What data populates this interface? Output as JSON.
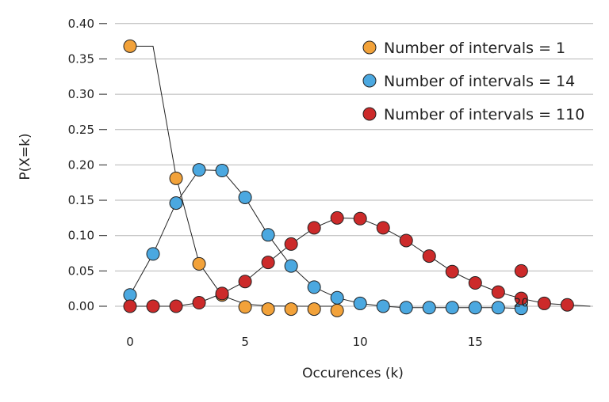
{
  "chart_data": {
    "type": "line",
    "xlabel": "Occurences (k)",
    "ylabel": "P(X=k)",
    "xlim": [
      -0.5,
      19.5
    ],
    "ylim": [
      -0.02,
      0.4
    ],
    "xticks": [
      0,
      5,
      10,
      15
    ],
    "yticks": [
      "0.00",
      "0.05",
      "0.10",
      "0.15",
      "0.20",
      "0.25",
      "0.30",
      "0.35",
      "0.40"
    ],
    "grid": "horizontal",
    "legend_position": "top-right",
    "annotations": [
      {
        "text": "20",
        "x": 17,
        "y": 0.005
      }
    ],
    "series": [
      {
        "name": "Number of intervals = 1",
        "color": "#f2a23a",
        "line_x": [
          0,
          1,
          2,
          3,
          4,
          5,
          6,
          7,
          8,
          9
        ],
        "line_y": [
          0.368,
          0.368,
          0.184,
          0.061,
          0.015,
          0.003,
          0.0005,
          0.0001,
          0.0,
          0.0
        ],
        "marker_x": [
          0,
          2,
          3,
          4,
          5,
          6,
          7,
          8,
          9
        ],
        "marker_y": [
          0.368,
          0.181,
          0.06,
          0.016,
          -0.001,
          -0.004,
          -0.004,
          -0.004,
          -0.006
        ]
      },
      {
        "name": "Number of intervals = 14",
        "color": "#4ba8e0",
        "line_x": [
          0,
          1,
          2,
          3,
          4,
          5,
          6,
          7,
          8,
          9,
          10,
          11,
          12,
          13,
          14,
          15,
          16,
          17
        ],
        "line_y": [
          0.016,
          0.074,
          0.146,
          0.193,
          0.192,
          0.154,
          0.101,
          0.057,
          0.027,
          0.012,
          0.004,
          0.0,
          -0.002,
          -0.002,
          -0.002,
          -0.002,
          -0.002,
          -0.003
        ],
        "marker_x": [
          0,
          1,
          2,
          3,
          4,
          5,
          6,
          7,
          8,
          9,
          10,
          11,
          12,
          13,
          14,
          15,
          16,
          17
        ],
        "marker_y": [
          0.016,
          0.074,
          0.146,
          0.193,
          0.192,
          0.154,
          0.101,
          0.057,
          0.027,
          0.012,
          0.004,
          0.0,
          -0.002,
          -0.002,
          -0.002,
          -0.002,
          -0.002,
          -0.003
        ]
      },
      {
        "name": "Number of intervals = 110",
        "color": "#cc2a2a",
        "line_x": [
          0,
          1,
          2,
          3,
          4,
          5,
          6,
          7,
          8,
          9,
          10,
          11,
          12,
          13,
          14,
          15,
          16,
          17,
          18,
          19,
          20
        ],
        "line_y": [
          0.0,
          0.0,
          0.0,
          0.005,
          0.018,
          0.035,
          0.062,
          0.088,
          0.111,
          0.125,
          0.124,
          0.111,
          0.093,
          0.071,
          0.049,
          0.033,
          0.02,
          0.011,
          0.004,
          0.002,
          0.0
        ],
        "marker_x": [
          0,
          1,
          2,
          3,
          4,
          5,
          6,
          7,
          8,
          9,
          10,
          11,
          12,
          13,
          14,
          15,
          16,
          17,
          17,
          18,
          19
        ],
        "marker_y": [
          0.0,
          0.0,
          0.0,
          0.005,
          0.018,
          0.035,
          0.062,
          0.088,
          0.111,
          0.125,
          0.124,
          0.111,
          0.093,
          0.071,
          0.049,
          0.033,
          0.02,
          0.05,
          0.011,
          0.004,
          0.002
        ]
      }
    ]
  }
}
